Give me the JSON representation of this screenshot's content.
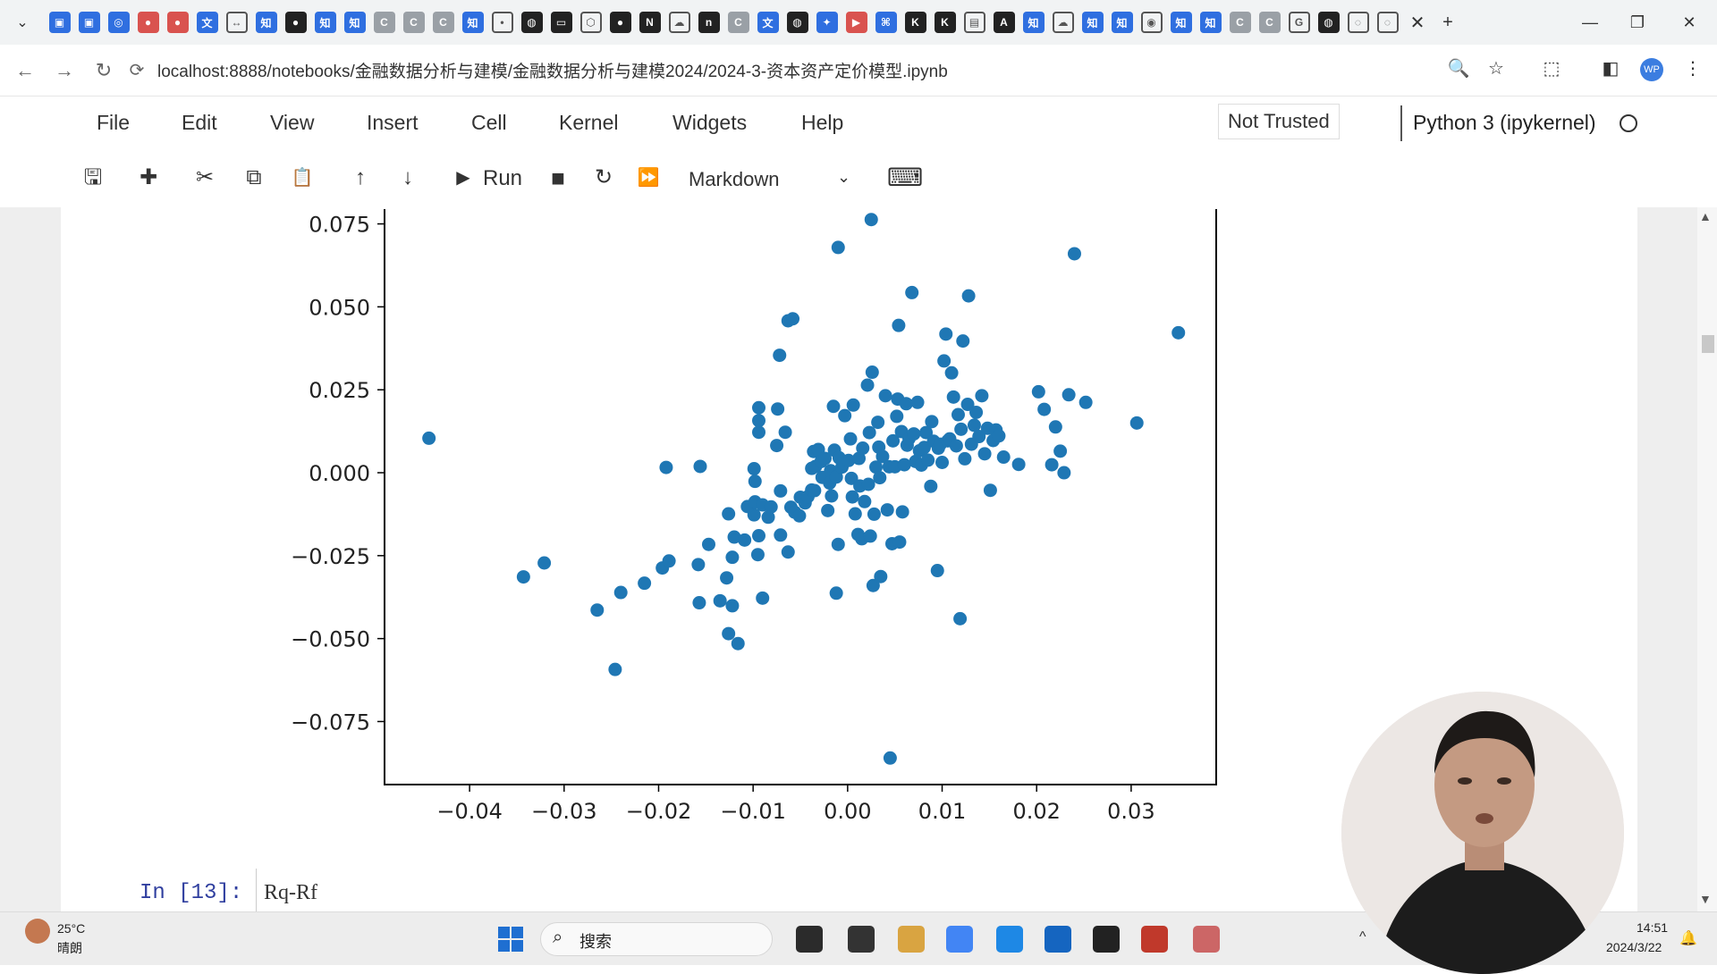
{
  "browser": {
    "tab_menu_glyph": "⌄",
    "tab_icons": [
      {
        "icon": "calendar-icon",
        "glyph": "▣",
        "style": "blue"
      },
      {
        "icon": "calendar-icon",
        "glyph": "▣",
        "style": "blue"
      },
      {
        "icon": "sync-icon",
        "glyph": "◎",
        "style": "blue"
      },
      {
        "icon": "record-icon",
        "glyph": "●",
        "style": "red"
      },
      {
        "icon": "record-icon",
        "glyph": "●",
        "style": "red"
      },
      {
        "icon": "translate-icon",
        "glyph": "文",
        "style": "blue"
      },
      {
        "icon": "arrows-icon",
        "glyph": "↔",
        "style": "outline"
      },
      {
        "icon": "zhihu-icon",
        "glyph": "知",
        "style": "blue"
      },
      {
        "icon": "github-icon",
        "glyph": "●",
        "style": "dark"
      },
      {
        "icon": "zhihu-icon",
        "glyph": "知",
        "style": "blue"
      },
      {
        "icon": "zhihu-icon",
        "glyph": "知",
        "style": "blue"
      },
      {
        "icon": "c-icon",
        "glyph": "C",
        "style": "grey"
      },
      {
        "icon": "c-icon",
        "glyph": "C",
        "style": "grey"
      },
      {
        "icon": "c-icon",
        "glyph": "C",
        "style": "grey"
      },
      {
        "icon": "zhihu-icon",
        "glyph": "知",
        "style": "blue"
      },
      {
        "icon": "dot-icon",
        "glyph": "•",
        "style": "outline"
      },
      {
        "icon": "globe-icon",
        "glyph": "◍",
        "style": "dark"
      },
      {
        "icon": "bilibili-icon",
        "glyph": "▭",
        "style": "dark"
      },
      {
        "icon": "hexagon-icon",
        "glyph": "⬡",
        "style": "outline"
      },
      {
        "icon": "github-icon",
        "glyph": "●",
        "style": "dark"
      },
      {
        "icon": "notion-icon",
        "glyph": "N",
        "style": "dark"
      },
      {
        "icon": "cloud-icon",
        "glyph": "☁",
        "style": "outline"
      },
      {
        "icon": "n-icon",
        "glyph": "n",
        "style": "dark"
      },
      {
        "icon": "c-icon",
        "glyph": "C",
        "style": "grey"
      },
      {
        "icon": "translate-icon",
        "glyph": "文",
        "style": "blue"
      },
      {
        "icon": "globe-icon",
        "glyph": "◍",
        "style": "dark"
      },
      {
        "icon": "star-icon",
        "glyph": "✦",
        "style": "blue"
      },
      {
        "icon": "video-icon",
        "glyph": "▶",
        "style": "red"
      },
      {
        "icon": "code-icon",
        "glyph": "⌘",
        "style": "blue"
      },
      {
        "icon": "k-icon",
        "glyph": "K",
        "style": "dark"
      },
      {
        "icon": "k-icon",
        "glyph": "K",
        "style": "dark"
      },
      {
        "icon": "book-icon",
        "glyph": "▤",
        "style": "outline"
      },
      {
        "icon": "a-icon",
        "glyph": "A",
        "style": "dark"
      },
      {
        "icon": "zhihu-icon",
        "glyph": "知",
        "style": "blue"
      },
      {
        "icon": "cloud-icon",
        "glyph": "☁",
        "style": "outline"
      },
      {
        "icon": "zhihu-icon",
        "glyph": "知",
        "style": "blue"
      },
      {
        "icon": "zhihu-icon",
        "glyph": "知",
        "style": "blue"
      },
      {
        "icon": "weibo-icon",
        "glyph": "◉",
        "style": "outline"
      },
      {
        "icon": "zhihu-icon",
        "glyph": "知",
        "style": "blue"
      },
      {
        "icon": "zhihu-icon",
        "glyph": "知",
        "style": "blue"
      },
      {
        "icon": "c-icon",
        "glyph": "C",
        "style": "grey"
      },
      {
        "icon": "c-icon",
        "glyph": "C",
        "style": "grey"
      },
      {
        "icon": "google-icon",
        "glyph": "G",
        "style": "outline"
      },
      {
        "icon": "globe-icon",
        "glyph": "◍",
        "style": "dark"
      },
      {
        "icon": "loading-icon",
        "glyph": "◌",
        "style": "outline"
      },
      {
        "icon": "loading-icon",
        "glyph": "◌",
        "style": "outline"
      }
    ],
    "close_glyph": "✕",
    "new_tab_glyph": "+",
    "window_buttons": {
      "minimize": "—",
      "restore": "❐",
      "close": "✕"
    },
    "address": {
      "back": "←",
      "forward": "→",
      "reload": "↻",
      "site_icon": "⟳",
      "url": "localhost:8888/notebooks/金融数据分析与建模/金融数据分析与建模2024/2024-3-资本资产定价模型.ipynb",
      "right_icons": [
        "🔍",
        "☆",
        "⬚",
        "◧"
      ],
      "profile": "WP",
      "more": "⋮"
    }
  },
  "jupyter": {
    "menu": [
      "File",
      "Edit",
      "View",
      "Insert",
      "Cell",
      "Kernel",
      "Widgets",
      "Help"
    ],
    "trust": "Not Trusted",
    "kernel": "Python 3 (ipykernel)",
    "toolbar": {
      "save": "🖫",
      "insert": "✚",
      "cut": "✂",
      "copy": "⧉",
      "paste": "📋",
      "up": "↑",
      "down": "↓",
      "run_icon": "▶",
      "run": "Run",
      "stop": "■",
      "restart": "↻",
      "fast_forward": "⏩",
      "cell_type": "Markdown",
      "cell_type_caret": "⌄",
      "keyboard": "⌨"
    },
    "next_cell": {
      "prompt": "In  [13]:",
      "code": "Rq-Rf"
    }
  },
  "chart_data": {
    "type": "scatter",
    "title": "",
    "xlabel": "",
    "ylabel": "",
    "xlim": [
      -0.049,
      0.039
    ],
    "ylim": [
      -0.094,
      0.08
    ],
    "xticks": [
      -0.04,
      -0.03,
      -0.02,
      -0.01,
      0.0,
      0.01,
      0.02,
      0.03
    ],
    "xtick_labels": [
      "−0.04",
      "−0.03",
      "−0.02",
      "−0.01",
      "0.00",
      "0.01",
      "0.02",
      "0.03"
    ],
    "yticks": [
      -0.075,
      -0.05,
      -0.025,
      0.0,
      0.025,
      0.05,
      0.075
    ],
    "ytick_labels": [
      "−0.075",
      "−0.050",
      "−0.025",
      "0.000",
      "0.025",
      "0.050",
      "0.075"
    ],
    "color": "#1f77b4",
    "grid": false,
    "points": [
      [
        -0.0443,
        0.0104
      ],
      [
        -0.0343,
        -0.0314
      ],
      [
        -0.0321,
        -0.0272
      ],
      [
        -0.0265,
        -0.0414
      ],
      [
        -0.0246,
        -0.0593
      ],
      [
        -0.024,
        -0.0361
      ],
      [
        -0.0215,
        -0.0333
      ],
      [
        -0.0196,
        -0.0287
      ],
      [
        -0.0189,
        -0.0266
      ],
      [
        -0.0192,
        0.0016
      ],
      [
        -0.0157,
        -0.0392
      ],
      [
        -0.0158,
        -0.0277
      ],
      [
        -0.0156,
        0.0019
      ],
      [
        -0.0147,
        -0.0216
      ],
      [
        -0.0135,
        -0.0386
      ],
      [
        -0.0128,
        -0.0317
      ],
      [
        -0.0126,
        -0.0485
      ],
      [
        -0.0122,
        -0.0401
      ],
      [
        -0.0126,
        -0.0124
      ],
      [
        -0.0116,
        -0.0515
      ],
      [
        -0.012,
        -0.0194
      ],
      [
        -0.0122,
        -0.0255
      ],
      [
        -0.0109,
        -0.0203
      ],
      [
        -0.0095,
        -0.0247
      ],
      [
        -0.009,
        -0.0378
      ],
      [
        -0.0099,
        -0.0127
      ],
      [
        -0.0094,
        -0.019
      ],
      [
        -0.0106,
        -0.0102
      ],
      [
        -0.0098,
        -0.0088
      ],
      [
        -0.0099,
        0.0012
      ],
      [
        -0.0098,
        -0.0026
      ],
      [
        -0.0094,
        0.0122
      ],
      [
        -0.0094,
        0.0157
      ],
      [
        -0.0094,
        0.0196
      ],
      [
        -0.009,
        -0.0097
      ],
      [
        -0.0081,
        -0.0103
      ],
      [
        -0.0084,
        -0.0134
      ],
      [
        -0.0075,
        0.0082
      ],
      [
        -0.0071,
        -0.0055
      ],
      [
        -0.0074,
        0.0192
      ],
      [
        -0.0066,
        0.0122
      ],
      [
        -0.0072,
        0.0354
      ],
      [
        -0.0063,
        0.0458
      ],
      [
        -0.0058,
        0.0464
      ],
      [
        -0.0071,
        -0.0188
      ],
      [
        -0.0063,
        -0.0239
      ],
      [
        -0.006,
        -0.0104
      ],
      [
        -0.0056,
        -0.0119
      ],
      [
        -0.0051,
        -0.013
      ],
      [
        -0.005,
        -0.0074
      ],
      [
        -0.0045,
        -0.0091
      ],
      [
        -0.0042,
        -0.0072
      ],
      [
        -0.0038,
        -0.0052
      ],
      [
        -0.0035,
        -0.0054
      ],
      [
        -0.0036,
        0.0064
      ],
      [
        -0.0038,
        0.0013
      ],
      [
        -0.0034,
        0.0019
      ],
      [
        -0.0031,
        0.007
      ],
      [
        -0.0028,
        0.0034
      ],
      [
        -0.0027,
        -0.0014
      ],
      [
        -0.0024,
        0.0043
      ],
      [
        -0.0021,
        -0.0114
      ],
      [
        -0.0019,
        -0.0031
      ],
      [
        -0.0018,
        0.0006
      ],
      [
        -0.0017,
        -0.007
      ],
      [
        -0.0014,
        0.0068
      ],
      [
        -0.0012,
        -0.0013
      ],
      [
        -0.001,
        -0.0216
      ],
      [
        -0.0012,
        -0.0363
      ],
      [
        -0.0015,
        0.02
      ],
      [
        -0.0009,
        0.0045
      ],
      [
        -0.0006,
        0.0017
      ],
      [
        -0.0005,
        0.0029
      ],
      [
        -0.0003,
        0.0172
      ],
      [
        -0.001,
        0.0679
      ],
      [
        0.0001,
        0.0037
      ],
      [
        0.0003,
        0.0102
      ],
      [
        0.0004,
        -0.0017
      ],
      [
        0.0005,
        -0.0073
      ],
      [
        0.0006,
        0.0204
      ],
      [
        0.0008,
        -0.0124
      ],
      [
        0.0011,
        -0.0186
      ],
      [
        0.0012,
        0.0043
      ],
      [
        0.0013,
        -0.004
      ],
      [
        0.0015,
        -0.0199
      ],
      [
        0.0016,
        0.0074
      ],
      [
        0.0018,
        -0.0087
      ],
      [
        0.0021,
        0.0264
      ],
      [
        0.0022,
        -0.0035
      ],
      [
        0.0023,
        0.0121
      ],
      [
        0.0024,
        -0.0191
      ],
      [
        0.0025,
        0.0763
      ],
      [
        0.0026,
        0.0303
      ],
      [
        0.0027,
        -0.034
      ],
      [
        0.0028,
        -0.0125
      ],
      [
        0.003,
        0.0017
      ],
      [
        0.0032,
        0.0152
      ],
      [
        0.0033,
        0.0077
      ],
      [
        0.0034,
        -0.0015
      ],
      [
        0.0035,
        -0.0313
      ],
      [
        0.0037,
        0.0049
      ],
      [
        0.004,
        0.0232
      ],
      [
        0.0042,
        -0.0112
      ],
      [
        0.0044,
        0.0018
      ],
      [
        0.0045,
        -0.086
      ],
      [
        0.0047,
        -0.0214
      ],
      [
        0.0048,
        0.0096
      ],
      [
        0.005,
        0.0018
      ],
      [
        0.0052,
        0.017
      ],
      [
        0.0053,
        0.0222
      ],
      [
        0.0054,
        0.0444
      ],
      [
        0.0055,
        -0.0209
      ],
      [
        0.0057,
        0.0124
      ],
      [
        0.0058,
        -0.0118
      ],
      [
        0.006,
        0.0024
      ],
      [
        0.0062,
        0.0208
      ],
      [
        0.0063,
        0.0083
      ],
      [
        0.0065,
        0.0103
      ],
      [
        0.0068,
        0.0543
      ],
      [
        0.007,
        0.0117
      ],
      [
        0.0072,
        0.0034
      ],
      [
        0.0074,
        0.0212
      ],
      [
        0.0076,
        0.0066
      ],
      [
        0.0078,
        0.0023
      ],
      [
        0.0081,
        0.0076
      ],
      [
        0.0083,
        0.0121
      ],
      [
        0.0085,
        0.0038
      ],
      [
        0.0088,
        -0.0041
      ],
      [
        0.0089,
        0.0154
      ],
      [
        0.0091,
        0.0095
      ],
      [
        0.0095,
        -0.0295
      ],
      [
        0.0096,
        0.0074
      ],
      [
        0.0098,
        0.0086
      ],
      [
        0.01,
        0.0031
      ],
      [
        0.0102,
        0.0337
      ],
      [
        0.0104,
        0.0418
      ],
      [
        0.0106,
        0.0096
      ],
      [
        0.0108,
        0.0102
      ],
      [
        0.011,
        0.0301
      ],
      [
        0.0112,
        0.0228
      ],
      [
        0.0115,
        0.0081
      ],
      [
        0.0117,
        0.0175
      ],
      [
        0.0119,
        -0.044
      ],
      [
        0.012,
        0.0131
      ],
      [
        0.0122,
        0.0397
      ],
      [
        0.0124,
        0.0042
      ],
      [
        0.0127,
        0.0206
      ],
      [
        0.0128,
        0.0533
      ],
      [
        0.0131,
        0.0086
      ],
      [
        0.0134,
        0.0143
      ],
      [
        0.0136,
        0.0182
      ],
      [
        0.0139,
        0.0109
      ],
      [
        0.0142,
        0.0232
      ],
      [
        0.0145,
        0.0057
      ],
      [
        0.0148,
        0.0134
      ],
      [
        0.0151,
        -0.0053
      ],
      [
        0.0154,
        0.0097
      ],
      [
        0.0157,
        0.0129
      ],
      [
        0.016,
        0.0111
      ],
      [
        0.0165,
        0.0047
      ],
      [
        0.0181,
        0.0025
      ],
      [
        0.0202,
        0.0244
      ],
      [
        0.0208,
        0.0191
      ],
      [
        0.0216,
        0.0024
      ],
      [
        0.022,
        0.0138
      ],
      [
        0.0225,
        0.0065
      ],
      [
        0.0229,
        0.0
      ],
      [
        0.0234,
        0.0235
      ],
      [
        0.024,
        0.066
      ],
      [
        0.0252,
        0.0212
      ],
      [
        0.0306,
        0.015
      ],
      [
        0.035,
        0.0422
      ]
    ]
  },
  "taskbar": {
    "weather_temp": "25°C",
    "weather_cond": "晴朗",
    "search_glyph": "⌕",
    "search": "搜索",
    "tray_arrow": "^",
    "time": "14:51",
    "date": "2024/3/22",
    "notification": "🔔",
    "apps": [
      {
        "icon": "file-explorer-icon",
        "color": "#2b2b2b"
      },
      {
        "icon": "terminal-window-icon",
        "color": "#333333"
      },
      {
        "icon": "folder-icon",
        "color": "#d9a441"
      },
      {
        "icon": "chrome-icon",
        "color": "#4285f4"
      },
      {
        "icon": "v-app-icon",
        "color": "#1e88e5"
      },
      {
        "icon": "bookmark-app-icon",
        "color": "#1565c0"
      },
      {
        "icon": "terminal-icon",
        "color": "#222222"
      },
      {
        "icon": "wps-icon",
        "color": "#c0392b"
      },
      {
        "icon": "record-app-icon",
        "color": "#cc6666"
      }
    ]
  }
}
